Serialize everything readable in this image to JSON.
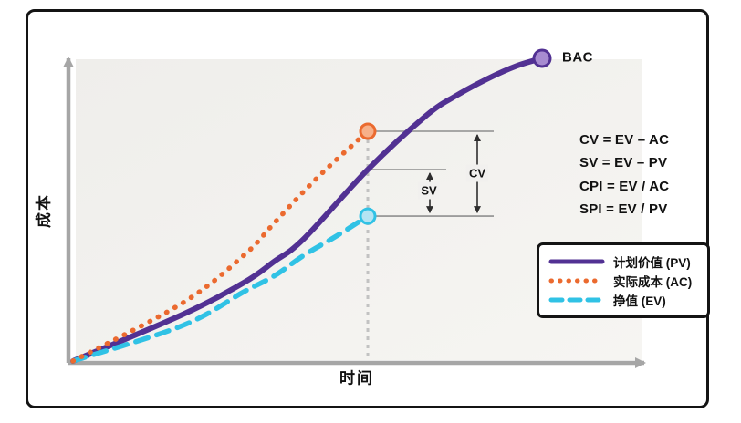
{
  "figure": {
    "y_axis_label": "成本",
    "x_axis_label": "时间",
    "bac_label": "BAC",
    "cv_label": "CV",
    "sv_label": "SV"
  },
  "formulas": [
    "CV = EV – AC",
    "SV = EV – PV",
    "CPI = EV / AC",
    "SPI = EV / PV"
  ],
  "legend": [
    {
      "label": "计划价值 (PV)",
      "color": "#523193",
      "style": "solid"
    },
    {
      "label": "实际成本 (AC)",
      "color": "#EB6A2F",
      "style": "dotted"
    },
    {
      "label": "挣值 (EV)",
      "color": "#30C2E5",
      "style": "dashed"
    }
  ],
  "colors": {
    "pv": "#523193",
    "ac": "#EB6A2F",
    "ev": "#30C2E5",
    "bac_fill": "#A78BD0",
    "ac_point_fill": "#F7B089",
    "ev_point_fill": "#B4E4F3",
    "axis": "#A6A6A6",
    "ref_line": "#9C9C9C",
    "dashed_guide": "#C2C2C2",
    "arrow": "#2E2E2E",
    "plot_bg_start": "#EFEEEB",
    "plot_bg_end": "#F6F5F2"
  },
  "chart_data": {
    "type": "line",
    "title": "",
    "xlabel": "时间",
    "ylabel": "成本",
    "x_range": [
      0,
      1
    ],
    "y_range": [
      0,
      1
    ],
    "grid": false,
    "legend_position": "bottom-right",
    "measurement_time": 0.521,
    "series": [
      {
        "name": "计划价值 (PV)",
        "color": "#523193",
        "style": "solid",
        "t": [
          0,
          0.194,
          0.302,
          0.355,
          0.408,
          0.521,
          0.624,
          0.677,
          0.731,
          0.785,
          0.829
        ],
        "v": [
          0,
          0.152,
          0.256,
          0.324,
          0.399,
          0.625,
          0.801,
          0.866,
          0.92,
          0.964,
          0.988
        ]
      },
      {
        "name": "实际成本 (AC)",
        "color": "#EB6A2F",
        "style": "dotted",
        "t": [
          0,
          0.194,
          0.302,
          0.355,
          0.408,
          0.452,
          0.521
        ],
        "v": [
          0,
          0.19,
          0.345,
          0.449,
          0.554,
          0.634,
          0.75
        ]
      },
      {
        "name": "挣值 (EV)",
        "color": "#30C2E5",
        "style": "dashed",
        "t": [
          0,
          0.194,
          0.302,
          0.355,
          0.408,
          0.463,
          0.521
        ],
        "v": [
          0,
          0.116,
          0.226,
          0.277,
          0.345,
          0.405,
          0.473
        ]
      }
    ],
    "markers": [
      {
        "name": "BAC",
        "series": "PV",
        "t": 0.829,
        "v": 0.988
      },
      {
        "name": "AC at measurement date",
        "series": "AC",
        "t": 0.521,
        "v": 0.75
      },
      {
        "name": "EV at measurement date",
        "series": "EV",
        "t": 0.521,
        "v": 0.473
      }
    ],
    "annotations": [
      {
        "name": "CV",
        "between": [
          "AC",
          "EV"
        ],
        "label": "CV"
      },
      {
        "name": "SV",
        "between": [
          "PV",
          "EV"
        ],
        "label": "SV"
      }
    ]
  }
}
